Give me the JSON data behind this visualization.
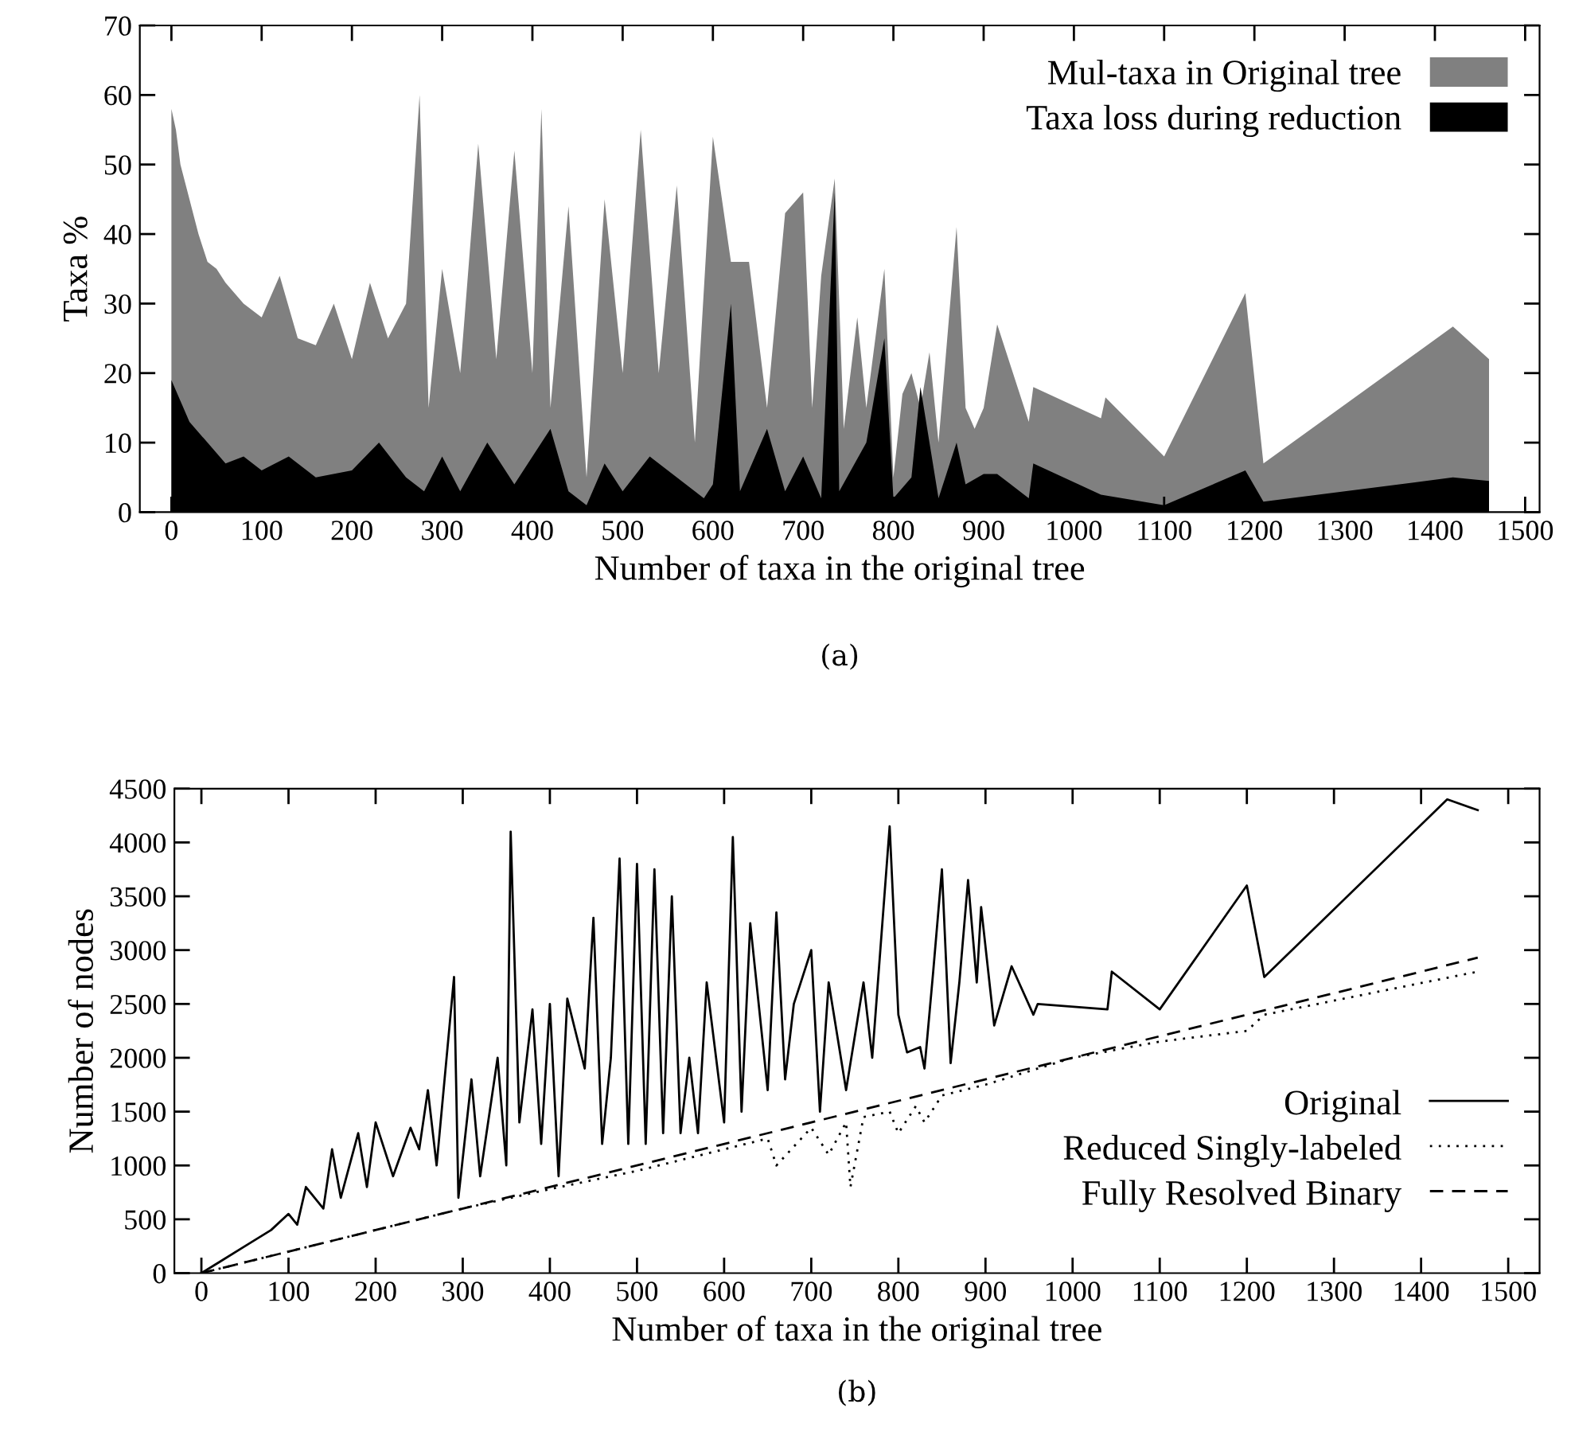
{
  "chart_data": [
    {
      "type": "area",
      "ylabel": "Taxa %",
      "xlabel": "Number of taxa in the original tree",
      "annotations": [
        "(a)"
      ],
      "xlim": [
        -35,
        1516
      ],
      "xticks": [
        0,
        100,
        200,
        300,
        400,
        500,
        600,
        700,
        800,
        900,
        1000,
        1100,
        1200,
        1300,
        1400,
        1500
      ],
      "ylim": [
        0,
        70
      ],
      "yticks": [
        0,
        10,
        20,
        30,
        40,
        50,
        60,
        70
      ],
      "grid": false,
      "legend": "upper right",
      "series": [
        {
          "name": "Mul-taxa in Original tree",
          "color": "#808080",
          "x": [
            0,
            5,
            10,
            20,
            30,
            40,
            50,
            60,
            80,
            100,
            120,
            140,
            160,
            180,
            200,
            220,
            240,
            260,
            275,
            285,
            300,
            320,
            340,
            360,
            380,
            400,
            410,
            420,
            440,
            460,
            480,
            500,
            520,
            540,
            560,
            580,
            600,
            620,
            640,
            660,
            680,
            700,
            710,
            720,
            735,
            745,
            760,
            770,
            790,
            800,
            810,
            820,
            830,
            840,
            850,
            870,
            880,
            890,
            900,
            915,
            950,
            955,
            1030,
            1035,
            1100,
            1190,
            1210,
            1420,
            1460
          ],
          "values": [
            58,
            55,
            50,
            45,
            40,
            36,
            35,
            33,
            30,
            28,
            34,
            25,
            24,
            30,
            22,
            33,
            25,
            30,
            60,
            15,
            35,
            20,
            53,
            22,
            52,
            20,
            58,
            15,
            44,
            5,
            45,
            20,
            55,
            20,
            47,
            10,
            54,
            36,
            36,
            15,
            43,
            46,
            15,
            34,
            48,
            12,
            28,
            15,
            35,
            5,
            17,
            20,
            15,
            23,
            10,
            41,
            15,
            12,
            15,
            27,
            13,
            18,
            13.5,
            16.5,
            8,
            31.5,
            7,
            26.7,
            22
          ]
        },
        {
          "name": "Taxa loss during reduction",
          "color": "#000000",
          "x": [
            0,
            10,
            20,
            40,
            60,
            80,
            100,
            130,
            160,
            200,
            230,
            260,
            280,
            300,
            320,
            350,
            380,
            420,
            440,
            460,
            480,
            500,
            530,
            560,
            590,
            600,
            620,
            630,
            660,
            680,
            700,
            720,
            735,
            740,
            770,
            790,
            800,
            820,
            830,
            850,
            870,
            880,
            900,
            915,
            950,
            955,
            1030,
            1100,
            1190,
            1210,
            1420,
            1460
          ],
          "values": [
            19,
            16,
            13,
            10,
            7,
            8,
            6,
            8,
            5,
            6,
            10,
            5,
            3,
            8,
            3,
            10,
            4,
            12,
            3,
            1,
            7,
            3,
            8,
            5,
            2,
            4,
            30,
            3,
            12,
            3,
            8,
            2,
            46,
            3,
            10,
            25,
            2,
            5,
            18,
            2,
            10,
            4,
            5.5,
            5.5,
            2,
            7,
            2.5,
            1,
            6,
            1.5,
            5,
            4.5
          ]
        }
      ]
    },
    {
      "type": "line",
      "ylabel": "Number of nodes",
      "xlabel": "Number of taxa in the original tree",
      "annotations": [
        "(b)"
      ],
      "xlim": [
        -31,
        1536
      ],
      "xticks": [
        0,
        100,
        200,
        300,
        400,
        500,
        600,
        700,
        800,
        900,
        1000,
        1100,
        1200,
        1300,
        1400,
        1500
      ],
      "ylim": [
        0,
        4500
      ],
      "yticks": [
        0,
        500,
        1000,
        1500,
        2000,
        2500,
        3000,
        3500,
        4000,
        4500
      ],
      "grid": false,
      "legend": "lower right",
      "marker": "none",
      "series": [
        {
          "name": "Original",
          "color": "#000000",
          "line_style": "solid",
          "x": [
            0,
            20,
            50,
            80,
            100,
            110,
            120,
            140,
            150,
            160,
            180,
            190,
            200,
            220,
            240,
            250,
            260,
            270,
            290,
            295,
            310,
            320,
            340,
            350,
            355,
            365,
            380,
            390,
            400,
            410,
            420,
            440,
            450,
            460,
            470,
            480,
            490,
            500,
            510,
            520,
            530,
            540,
            550,
            560,
            570,
            580,
            600,
            610,
            620,
            630,
            650,
            660,
            670,
            680,
            700,
            710,
            720,
            740,
            760,
            770,
            790,
            800,
            810,
            825,
            830,
            840,
            850,
            860,
            870,
            880,
            890,
            895,
            910,
            930,
            955,
            960,
            1040,
            1045,
            1100,
            1200,
            1220,
            1430,
            1465
          ],
          "values": [
            0,
            100,
            250,
            400,
            550,
            450,
            800,
            600,
            1150,
            700,
            1300,
            800,
            1400,
            900,
            1350,
            1150,
            1700,
            1000,
            2750,
            700,
            1800,
            900,
            2000,
            1000,
            4100,
            1400,
            2450,
            1200,
            2500,
            900,
            2550,
            1900,
            3300,
            1200,
            2000,
            3850,
            1200,
            3800,
            1200,
            3750,
            1300,
            3500,
            1300,
            2000,
            1300,
            2700,
            1400,
            4050,
            1500,
            3250,
            1700,
            3350,
            1800,
            2500,
            3000,
            1500,
            2700,
            1700,
            2700,
            2000,
            4150,
            2400,
            2050,
            2100,
            1900,
            2800,
            3750,
            1950,
            2700,
            3650,
            2700,
            3400,
            2300,
            2850,
            2400,
            2500,
            2450,
            2800,
            2450,
            3600,
            2750,
            4400,
            4300
          ]
        },
        {
          "name": "Reduced Singly-labeled",
          "color": "#000000",
          "line_style": "dotted",
          "x": [
            0,
            100,
            200,
            300,
            400,
            500,
            600,
            650,
            660,
            700,
            720,
            740,
            745,
            760,
            790,
            800,
            820,
            830,
            850,
            900,
            1000,
            1100,
            1200,
            1220,
            1465
          ],
          "values": [
            0,
            200,
            400,
            600,
            780,
            950,
            1150,
            1250,
            1000,
            1350,
            1100,
            1400,
            800,
            1450,
            1500,
            1300,
            1550,
            1400,
            1650,
            1750,
            2000,
            2150,
            2250,
            2400,
            2800
          ]
        },
        {
          "name": "Fully Resolved Binary",
          "color": "#000000",
          "line_style": "dashed",
          "x": [
            0,
            1465
          ],
          "values": [
            0,
            2930
          ]
        }
      ]
    }
  ]
}
